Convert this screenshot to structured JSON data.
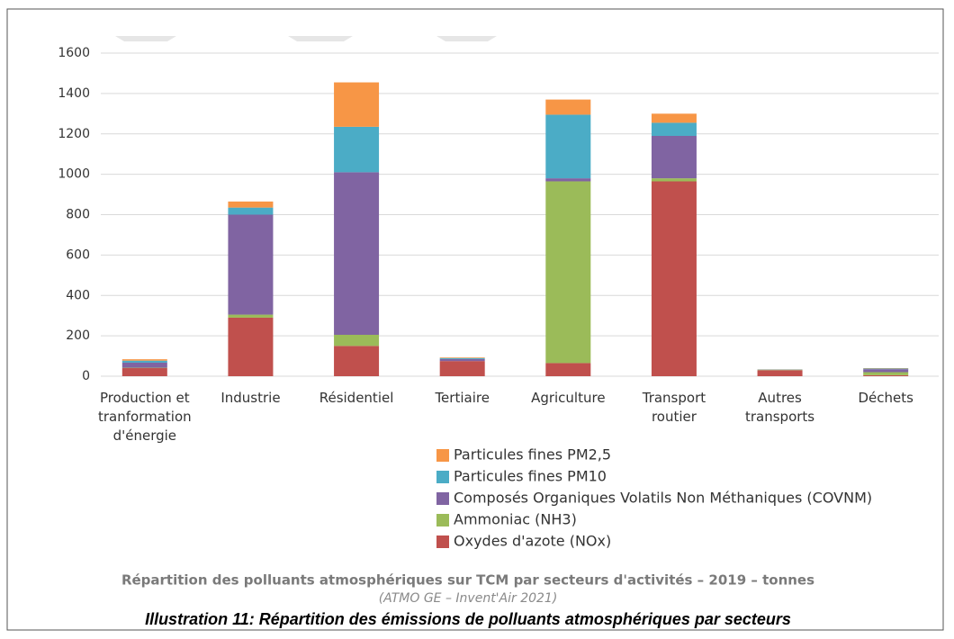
{
  "chart_data": {
    "type": "stacked_bar",
    "title": "Répartition des polluants atmosphériques sur TCM par secteurs d'activités – 2019 – tonnes",
    "subtitle": "(ATMO GE – Invent'Air 2021)",
    "caption": "Illustration 11: Répartition des émissions de polluants atmosphériques par secteurs",
    "categories": [
      "Production et tranformation d'énergie",
      "Industrie",
      "Résidentiel",
      "Tertiaire",
      "Agriculture",
      "Transport routier",
      "Autres transports",
      "Déchets"
    ],
    "series": [
      {
        "name": "Oxydes d'azote (NOx)",
        "color": "#c0504d",
        "values": [
          40,
          290,
          150,
          75,
          65,
          965,
          30,
          5
        ]
      },
      {
        "name": "Ammoniac (NH3)",
        "color": "#9bbb59",
        "values": [
          2,
          15,
          55,
          0,
          900,
          15,
          1,
          15
        ]
      },
      {
        "name": "Composés Organiques Volatils Non Méthaniques (COVNM)",
        "color": "#8064a2",
        "values": [
          25,
          495,
          805,
          10,
          15,
          210,
          0,
          15
        ]
      },
      {
        "name": "Particules fines PM10",
        "color": "#4bacc6",
        "values": [
          10,
          35,
          225,
          5,
          315,
          65,
          2,
          3
        ]
      },
      {
        "name": "Particules fines PM2,5",
        "color": "#f79646",
        "values": [
          7,
          30,
          220,
          3,
          75,
          45,
          1,
          2
        ]
      }
    ],
    "ylim": [
      0,
      1600
    ],
    "yticks": [
      0,
      200,
      400,
      600,
      800,
      1000,
      1200,
      1400,
      1600
    ],
    "grid": true
  }
}
